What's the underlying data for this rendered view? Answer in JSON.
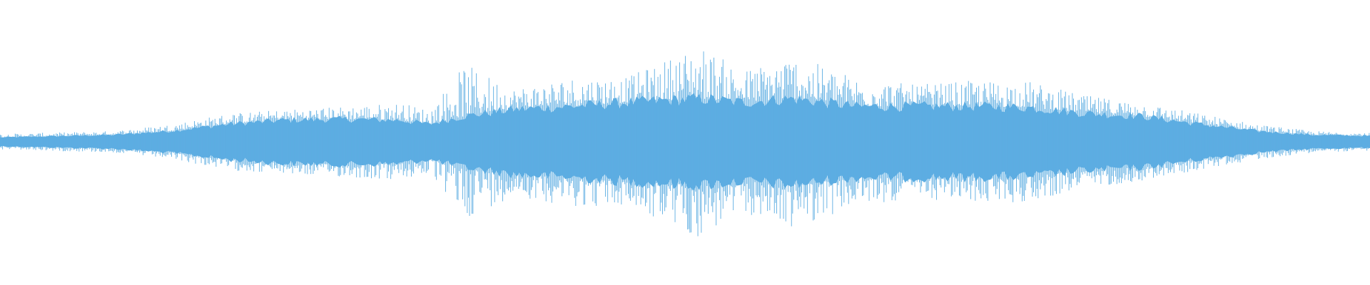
{
  "chart_data": {
    "type": "area",
    "description_kind": "audio-waveform",
    "color": "#5dade2",
    "background": "#ffffff",
    "grid": false,
    "legend": "none",
    "ylim": [
      -1,
      1
    ],
    "xlim": [
      0,
      1
    ],
    "envelope": {
      "x": [
        0,
        0.083,
        0.125,
        0.167,
        0.208,
        0.25,
        0.292,
        0.313,
        0.339,
        0.375,
        0.417,
        0.458,
        0.51,
        0.542,
        0.578,
        0.625,
        0.667,
        0.708,
        0.75,
        0.792,
        0.833,
        0.875,
        0.917,
        0.958,
        1
      ],
      "peak": [
        0.08,
        0.11,
        0.18,
        0.29,
        0.33,
        0.36,
        0.4,
        0.33,
        0.79,
        0.55,
        0.66,
        0.66,
        0.99,
        0.73,
        0.88,
        0.66,
        0.58,
        0.62,
        0.62,
        0.47,
        0.4,
        0.29,
        0.18,
        0.11,
        0.09
      ],
      "core": [
        0.045,
        0.07,
        0.11,
        0.18,
        0.22,
        0.23,
        0.22,
        0.18,
        0.26,
        0.33,
        0.36,
        0.4,
        0.44,
        0.4,
        0.44,
        0.36,
        0.36,
        0.36,
        0.35,
        0.29,
        0.26,
        0.18,
        0.11,
        0.07,
        0.06
      ]
    }
  }
}
